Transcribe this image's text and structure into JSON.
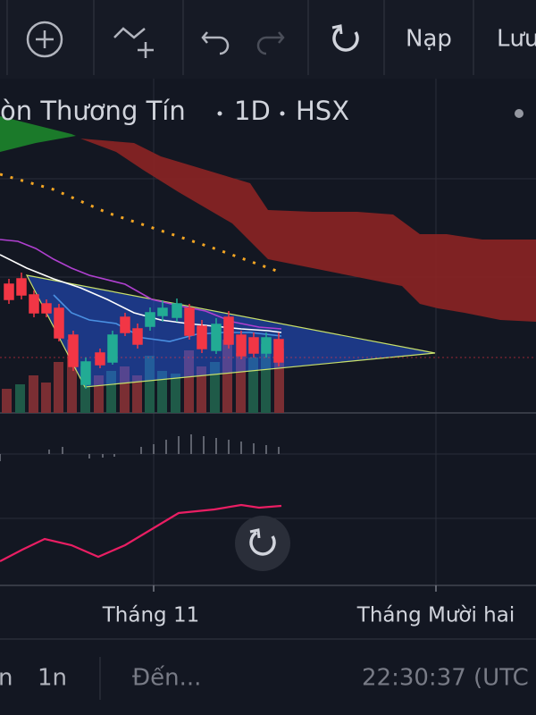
{
  "toolbar": {
    "buttons": [
      "Nạp",
      "Lưu"
    ]
  },
  "header": {
    "title": "òn Thương Tín",
    "interval": "1D",
    "exchange": "HSX"
  },
  "x_axis": {
    "labels": [
      "Tháng 11",
      "Tháng Mười hai"
    ]
  },
  "bottom_bar": {
    "ranges": [
      "n",
      "1n"
    ],
    "goto": "Đến...",
    "clock": "22:30:37 (UTC"
  }
}
